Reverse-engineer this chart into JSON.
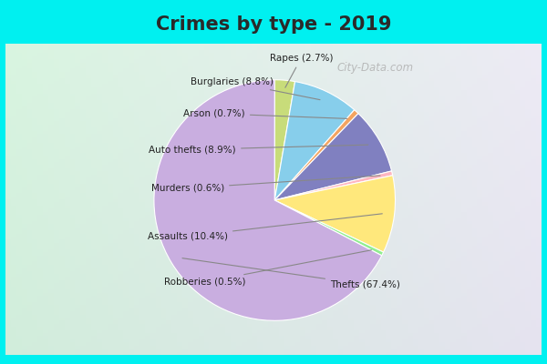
{
  "title": "Crimes by type - 2019",
  "title_fontsize": 15,
  "title_color": "#2a2a2a",
  "background_cyan": "#00f0f0",
  "background_chart_tl": "#d8ede0",
  "background_chart_br": "#e8f0f8",
  "pie_order": [
    "Rapes",
    "Burglaries",
    "Arson",
    "Auto thefts",
    "Murders",
    "Assaults",
    "Robberies",
    "Thefts"
  ],
  "pie_values": [
    2.7,
    8.8,
    0.7,
    8.9,
    0.6,
    10.4,
    0.5,
    67.4
  ],
  "pie_colors": [
    "#c8dc7a",
    "#87ceeb",
    "#f4a460",
    "#8080c0",
    "#ffb6c1",
    "#ffe87c",
    "#90ee90",
    "#c9aee0"
  ],
  "label_texts": [
    "Rapes (2.7%)",
    "Burglaries (8.8%)",
    "Arson (0.7%)",
    "Auto thefts (8.9%)",
    "Murders (0.6%)",
    "Assaults (10.4%)",
    "Robberies (0.5%)",
    "Thefts (67.4%)"
  ],
  "watermark": "City-Data.com",
  "figure_size": [
    6.0,
    4.0
  ],
  "dpi": 100,
  "cyan_bar_height": 0.135
}
